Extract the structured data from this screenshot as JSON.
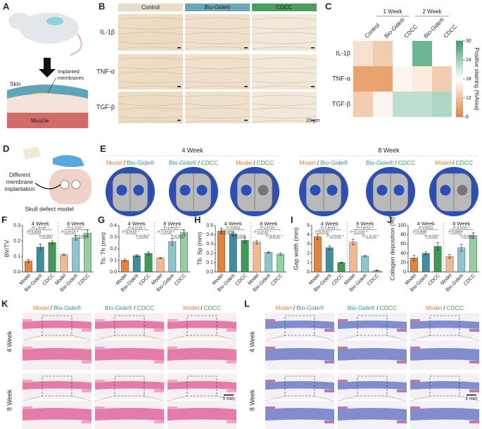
{
  "panel_labels": [
    "A",
    "B",
    "C",
    "D",
    "E",
    "F",
    "G",
    "H",
    "I",
    "J",
    "K",
    "L"
  ],
  "name_colors": {
    "Model": "#e8823a",
    "Bio-Gide®": "#3d8fa0",
    "CDCC": "#3f9a56"
  },
  "panel_a": {
    "skin": "Skin",
    "membranes": [
      "Implanted",
      "membranes"
    ],
    "muscle": "Muscle"
  },
  "panel_b": {
    "columns": [
      "Control",
      "Bio-Gide®",
      "CDCC"
    ],
    "rows": [
      "IL-1β",
      "TNF-α",
      "TGF-β"
    ],
    "scale": "20 μm"
  },
  "panel_d": {
    "label": [
      "Different",
      "membrane",
      "implantation"
    ],
    "caption": "Skull defect model"
  },
  "panel_e": {
    "groups": [
      "4 Week",
      "8 Week"
    ],
    "labels": [
      [
        "Model",
        "/",
        "Bio-Gide®"
      ],
      [
        "Bio-Gide®",
        "/",
        "CDCC"
      ],
      [
        "Model",
        "/",
        "CDCC"
      ],
      [
        "Model",
        "/",
        "Bio-Gide®"
      ],
      [
        "Bio-Gide®",
        "/",
        "CDCC"
      ],
      [
        "Model",
        "/",
        "CDCC"
      ]
    ]
  },
  "panel_k": {
    "labels": [
      [
        "Model",
        "/",
        "Bio-Gide®"
      ],
      [
        "Bio-Gide®",
        "/",
        "CDCC"
      ],
      [
        "Model",
        "/",
        "CDCC"
      ]
    ],
    "rows": [
      "4 Week",
      "8 Week"
    ],
    "scale": "1 mm"
  },
  "panel_l": {
    "labels": [
      [
        "Model",
        "/",
        "Bio-Gide®"
      ],
      [
        "Bio-Gide®",
        "/",
        "CDCC"
      ],
      [
        "Model",
        "/",
        "CDCC"
      ]
    ],
    "rows": [
      "4 Week",
      "8 Week"
    ],
    "scale": "1 mm"
  },
  "chart_data": [
    {
      "type": "heatmap",
      "columns": [
        "Control",
        "Bio-Gide®",
        "CDCC",
        "Bio-Gide®",
        "CDCC"
      ],
      "column_groups": [
        "1 Week",
        "2 Week"
      ],
      "rows": [
        "IL-1β",
        "TNF-α",
        "TGF-β"
      ],
      "values": [
        [
          15,
          13,
          18,
          27,
          18
        ],
        [
          9,
          9,
          17,
          16,
          13
        ],
        [
          13,
          17,
          22,
          22,
          23
        ]
      ],
      "colormap": [
        "#e0843e",
        "#ffffff",
        "#3a9e6e"
      ],
      "clim": [
        6,
        30
      ],
      "cticks": [
        6,
        12,
        18,
        24,
        30
      ],
      "clabel": "Positive staining (%Area)"
    },
    {
      "type": "bar",
      "ylabel": "BV/TV",
      "categories": [
        "Model",
        "Bio-Gide®",
        "CDCC",
        "Model",
        "Bio-Gide®",
        "CDCC"
      ],
      "colors": [
        "#e8823a",
        "#3d8fa0",
        "#3f9a56",
        "#f2b98f",
        "#8cc4cf",
        "#93d1a4"
      ],
      "values": [
        0.07,
        0.16,
        0.19,
        0.11,
        0.22,
        0.25
      ],
      "errors": [
        0.01,
        0.02,
        0.01,
        0.005,
        0.015,
        0.02
      ],
      "ylim": [
        0,
        0.3
      ],
      "yticks": [
        {
          "value": 0,
          "label": "0.0"
        },
        0.1,
        0.2,
        0.3
      ],
      "groups": [
        {
          "name": "4 Week",
          "annotations": [
            "P=1.5×10⁻⁵",
            "P=0.0001",
            "P=0.0027"
          ]
        },
        {
          "name": "8 Week",
          "annotations": [
            "P=1.7×10⁻⁷",
            "P=2.0×10⁻⁶",
            "P=0.0001"
          ]
        }
      ]
    },
    {
      "type": "bar",
      "ylabel": "Tb. Th (mm)",
      "categories": [
        "Model",
        "Bio-Gide®",
        "CDCC",
        "Model",
        "Bio-Gide®",
        "CDCC"
      ],
      "colors": [
        "#e8823a",
        "#3d8fa0",
        "#3f9a56",
        "#f2b98f",
        "#8cc4cf",
        "#93d1a4"
      ],
      "values": [
        0.1,
        0.14,
        0.16,
        0.12,
        0.26,
        0.34
      ],
      "errors": [
        0.01,
        0.01,
        0.015,
        0.005,
        0.03,
        0.02
      ],
      "ylim": [
        0,
        0.4
      ],
      "yticks": [
        {
          "value": 0,
          "label": "0.0"
        },
        0.1,
        0.2,
        0.3,
        0.4
      ],
      "groups": [
        {
          "name": "4 Week",
          "annotations": [
            "P=5.3×10⁻⁸",
            "P=9.0×10⁻⁵",
            "P=0.0027"
          ]
        },
        {
          "name": "8 Week",
          "annotations": [
            "P=1.4×10⁻⁶",
            "P=7.0×10⁻⁶",
            "P=0.0013"
          ]
        }
      ]
    },
    {
      "type": "bar",
      "ylabel": "Tb. Sp (mm)",
      "categories": [
        "Model",
        "Bio-Gide®",
        "CDCC",
        "Model",
        "Bio-Gide®",
        "CDCC"
      ],
      "colors": [
        "#e8823a",
        "#3d8fa0",
        "#3f9a56",
        "#f2b98f",
        "#8cc4cf",
        "#93d1a4"
      ],
      "values": [
        0.44,
        0.41,
        0.34,
        0.32,
        0.21,
        0.19
      ],
      "errors": [
        0.03,
        0.02,
        0.03,
        0.02,
        0.01,
        0.01
      ],
      "ylim": [
        0,
        0.5
      ],
      "yticks": [
        {
          "value": 0,
          "label": "0.0"
        },
        0.1,
        0.2,
        0.3,
        0.4,
        0.5
      ],
      "groups": [
        {
          "name": "4 Week",
          "annotations": [
            "P=0.0012",
            "P=0.0458",
            "P=0.0236"
          ]
        },
        {
          "name": "8 Week",
          "annotations": [
            "P=2.8×10⁻⁷",
            "P=2.2×10⁻⁵",
            "P=6.8×10⁻⁵"
          ]
        }
      ]
    },
    {
      "type": "bar",
      "ylabel": "Gap width (mm)",
      "categories": [
        "Model",
        "Bio-Gide®",
        "CDCC",
        "Model",
        "Bio-Gide®",
        "CDCC"
      ],
      "colors": [
        "#e8823a",
        "#3d8fa0",
        "#3f9a56",
        "#f2b98f",
        "#8cc4cf",
        "#93d1a4"
      ],
      "values": [
        3.8,
        2.6,
        1.0,
        3.2,
        1.7,
        0.15
      ],
      "errors": [
        0.3,
        0.2,
        0.05,
        0.3,
        0.1,
        0.05
      ],
      "ylim": [
        0,
        5
      ],
      "yticks": [
        0,
        1,
        2,
        3,
        4,
        5
      ],
      "groups": [
        {
          "name": "4 Week",
          "annotations": [
            "P=7.6×10⁻⁵",
            "P=6.0×10⁻⁷",
            "P=2.0×10⁻⁵"
          ]
        },
        {
          "name": "8 Week",
          "annotations": [
            "P=7.8×10⁻⁹",
            "P=5.1×10⁻⁸",
            "P=1.3×10⁻⁶"
          ]
        }
      ]
    },
    {
      "type": "bar",
      "ylabel": "Collagen deposition (%)",
      "categories": [
        "Model",
        "Bio-Gide®",
        "CDCC",
        "Model",
        "Bio-Gide®",
        "CDCC"
      ],
      "colors": [
        "#e8823a",
        "#3d8fa0",
        "#3f9a56",
        "#f2b98f",
        "#8cc4cf",
        "#93d1a4"
      ],
      "values": [
        30,
        40,
        55,
        33,
        52,
        78
      ],
      "errors": [
        6,
        3,
        8,
        4,
        7,
        6
      ],
      "ylim": [
        0,
        100
      ],
      "yticks": [
        0,
        20,
        40,
        60,
        80,
        100
      ],
      "groups": [
        {
          "name": "4 Week",
          "annotations": [
            "P=0.0023",
            "P=0.0095",
            "P=0.0197"
          ]
        },
        {
          "name": "8 Week",
          "annotations": [
            "P=3.3×10⁻⁵",
            "P=0.0064",
            "P=0.0023"
          ]
        }
      ]
    }
  ]
}
